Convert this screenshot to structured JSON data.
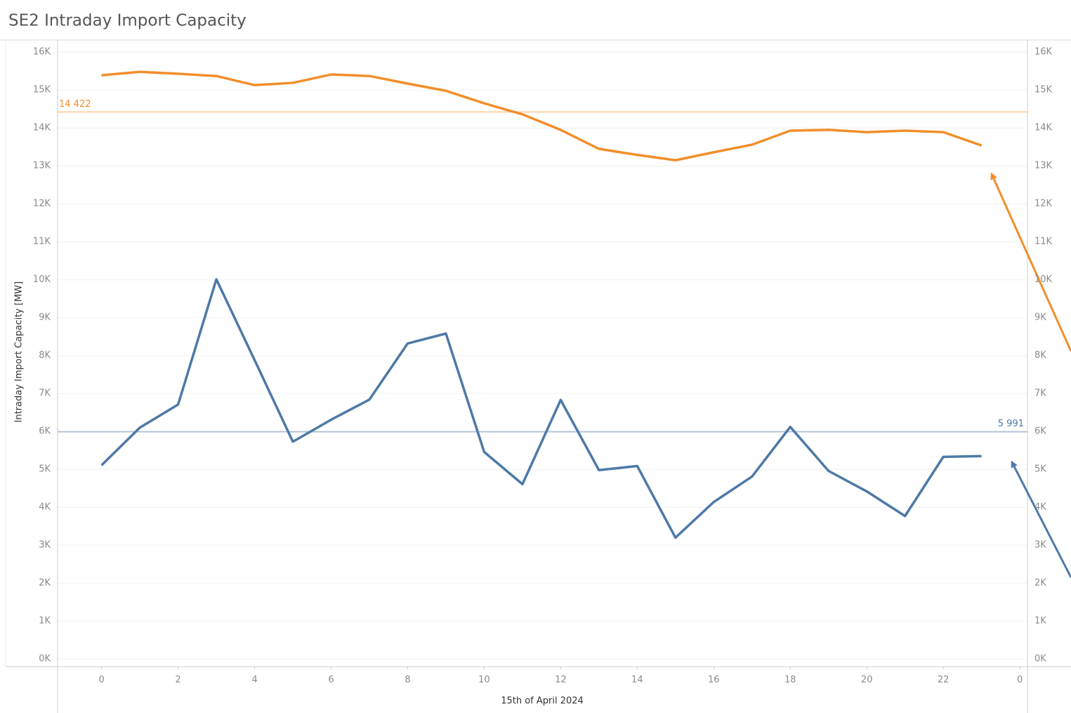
{
  "chart_data": {
    "type": "line",
    "title": "SE2 Intraday Import Capacity",
    "y_label": "Intraday Import Capacity [MW]",
    "x_label": "15th of April 2024",
    "x": [
      0,
      1,
      2,
      3,
      4,
      5,
      6,
      7,
      8,
      9,
      10,
      11,
      12,
      13,
      14,
      15,
      16,
      17,
      18,
      19,
      20,
      21,
      22,
      23
    ],
    "series": [
      {
        "color": "#f28e2b",
        "values": [
          15390,
          15480,
          15430,
          15370,
          15130,
          15190,
          15410,
          15370,
          15170,
          14980,
          14650,
          14360,
          13950,
          13450,
          13290,
          13150,
          13360,
          13560,
          13930,
          13950,
          13890,
          13930,
          13890,
          13540
        ]
      },
      {
        "color": "#4e79a7",
        "values": [
          5110,
          6100,
          6710,
          10010,
          7880,
          5730,
          6310,
          6840,
          8320,
          8580,
          5460,
          4610,
          6830,
          4980,
          5090,
          3200,
          4140,
          4810,
          6120,
          4960,
          4420,
          3770,
          5330,
          5350
        ]
      }
    ],
    "reference_lines": [
      {
        "value": 14422,
        "label": "14 422",
        "color": "#f28e2b"
      },
      {
        "value": 5991,
        "label": "5 991",
        "color": "#4e79a7"
      }
    ],
    "xlim": [
      -1.15,
      24.2
    ],
    "xticks": [
      0,
      2,
      4,
      6,
      8,
      10,
      12,
      14,
      16,
      18,
      20,
      22,
      {
        "value": 24,
        "label": "0"
      }
    ],
    "ylim": [
      -200,
      16300
    ],
    "yticks": [
      {
        "value": 0,
        "label": "0K"
      },
      {
        "value": 1000,
        "label": "1K"
      },
      {
        "value": 2000,
        "label": "2K"
      },
      {
        "value": 3000,
        "label": "3K"
      },
      {
        "value": 4000,
        "label": "4K"
      },
      {
        "value": 5000,
        "label": "5K"
      },
      {
        "value": 6000,
        "label": "6K"
      },
      {
        "value": 7000,
        "label": "7K"
      },
      {
        "value": 8000,
        "label": "8K"
      },
      {
        "value": 9000,
        "label": "9K"
      },
      {
        "value": 10000,
        "label": "10K"
      },
      {
        "value": 11000,
        "label": "11K"
      },
      {
        "value": 12000,
        "label": "12K"
      },
      {
        "value": 13000,
        "label": "13K"
      },
      {
        "value": 14000,
        "label": "14K"
      },
      {
        "value": 15000,
        "label": "15K"
      },
      {
        "value": 16000,
        "label": "16K"
      }
    ],
    "y2lim": [
      -200,
      16300
    ],
    "y2ticks": [
      {
        "value": 0,
        "label": "0K"
      },
      {
        "value": 1000,
        "label": "1K"
      },
      {
        "value": 2000,
        "label": "2K"
      },
      {
        "value": 3000,
        "label": "3K"
      },
      {
        "value": 4000,
        "label": "4K"
      },
      {
        "value": 5000,
        "label": "5K"
      },
      {
        "value": 6000,
        "label": "6K"
      },
      {
        "value": 7000,
        "label": "7K"
      },
      {
        "value": 8000,
        "label": "8K"
      },
      {
        "value": 9000,
        "label": "9K"
      },
      {
        "value": 10000,
        "label": "10K"
      },
      {
        "value": 11000,
        "label": "11K"
      },
      {
        "value": 12000,
        "label": "12K"
      },
      {
        "value": 13000,
        "label": "13K"
      },
      {
        "value": 14000,
        "label": "14K"
      },
      {
        "value": 15000,
        "label": "15K"
      },
      {
        "value": 16000,
        "label": "16K"
      }
    ],
    "grid": true
  }
}
